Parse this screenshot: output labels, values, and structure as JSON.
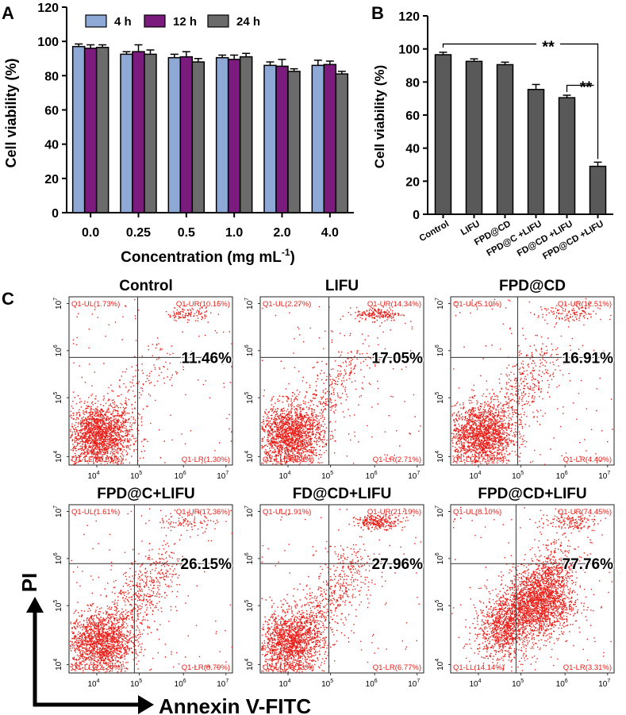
{
  "panel_labels": [
    "A",
    "B",
    "C"
  ],
  "chart_data": [
    {
      "panel": "A",
      "type": "bar",
      "ylabel": "Cell viability (%)",
      "xlabel": "Concentration (mg mL",
      "xlabel_sup": "-1",
      "xlabel_end": ")",
      "ylim": [
        0,
        120
      ],
      "yticks": [
        "0",
        "20",
        "40",
        "60",
        "80",
        "100",
        "120"
      ],
      "categories": [
        "0.0",
        "0.25",
        "0.5",
        "1.0",
        "2.0",
        "4.0"
      ],
      "series": [
        {
          "name": "4 h",
          "color": "#8FA9D6",
          "values": [
            97,
            92.5,
            90.5,
            90.5,
            86,
            86
          ],
          "errors": [
            1.5,
            1.5,
            2,
            1.5,
            2,
            3
          ]
        },
        {
          "name": "12 h",
          "color": "#7B1B7E",
          "values": [
            96,
            94,
            91,
            89.5,
            85.5,
            86.5
          ],
          "errors": [
            2,
            4,
            3,
            2.5,
            4,
            2
          ]
        },
        {
          "name": "24 h",
          "color": "#6B6B6B",
          "values": [
            96.5,
            92.5,
            88,
            91,
            82.5,
            81
          ],
          "errors": [
            1.5,
            2.5,
            2,
            2,
            1.5,
            1.5
          ]
        }
      ]
    },
    {
      "panel": "B",
      "type": "bar",
      "ylabel": "Cell viability (%)",
      "ylim": [
        0,
        120
      ],
      "yticks": [
        "0",
        "20",
        "40",
        "60",
        "80",
        "100",
        "120"
      ],
      "categories": [
        "Control",
        "LIFU",
        "FPD@CD",
        "FPD@C +LIFU",
        "FD@CD +LIFU",
        "FPD@CD +LIFU"
      ],
      "values": [
        96.5,
        92.5,
        90.5,
        75.5,
        70.5,
        29
      ],
      "errors": [
        1.5,
        1.5,
        1.5,
        3,
        1.5,
        2.5
      ],
      "color": "#595959",
      "annotations": [
        "**",
        "**"
      ]
    },
    {
      "panel": "C",
      "type": "scatter",
      "xlabel": "Annexin V-FITC",
      "ylabel": "PI",
      "point_color": "#E8201A",
      "xticks": [
        "10",
        "10",
        "10",
        "10"
      ],
      "xtick_exps": [
        "4",
        "5",
        "6",
        "7"
      ],
      "yticks": [
        "10",
        "10",
        "10",
        "10"
      ],
      "ytick_exps": [
        "4",
        "5",
        "6",
        "7"
      ],
      "plots": [
        {
          "title": "Control",
          "ul": "Q1-UL(1.73%)",
          "ur": "Q1-UR(10.16%)",
          "ll": "Q1-LL(86.81%)",
          "lr": "Q1-LR(1.30%)",
          "pct": "11.46%"
        },
        {
          "title": "LIFU",
          "ul": "Q1-UL(2.27%)",
          "ur": "Q1-UR(14.34%)",
          "ll": "Q1-LL(80.68%)",
          "lr": "Q1-LR(2.71%)",
          "pct": "17.05%"
        },
        {
          "title": "FPD@CD",
          "ul": "Q1-UL(5.10%)",
          "ur": "Q1-UR(12.51%)",
          "ll": "Q1-LL(77.99%)",
          "lr": "Q1-LR(4.40%)",
          "pct": "16.91%"
        },
        {
          "title": "FPD@C+LIFU",
          "ul": "Q1-UL(1.61%)",
          "ur": "Q1-UR(17.36%)",
          "ll": "Q1-LL(72.24%)",
          "lr": "Q1-LR(8.79%)",
          "pct": "26.15%"
        },
        {
          "title": "FD@CD+LIFU",
          "ul": "Q1-UL(1.91%)",
          "ur": "Q1-UR(21.19%)",
          "ll": "Q1-LL(70.13%)",
          "lr": "Q1-LR(6.77%)",
          "pct": "27.96%"
        },
        {
          "title": "FPD@CD+LIFU",
          "ul": "Q1-UL(8.10%)",
          "ur": "Q1-UR(74.45%)",
          "ll": "Q1-LL(14.14%)",
          "lr": "Q1-LR(3.31%)",
          "pct": "77.76%"
        }
      ]
    }
  ]
}
